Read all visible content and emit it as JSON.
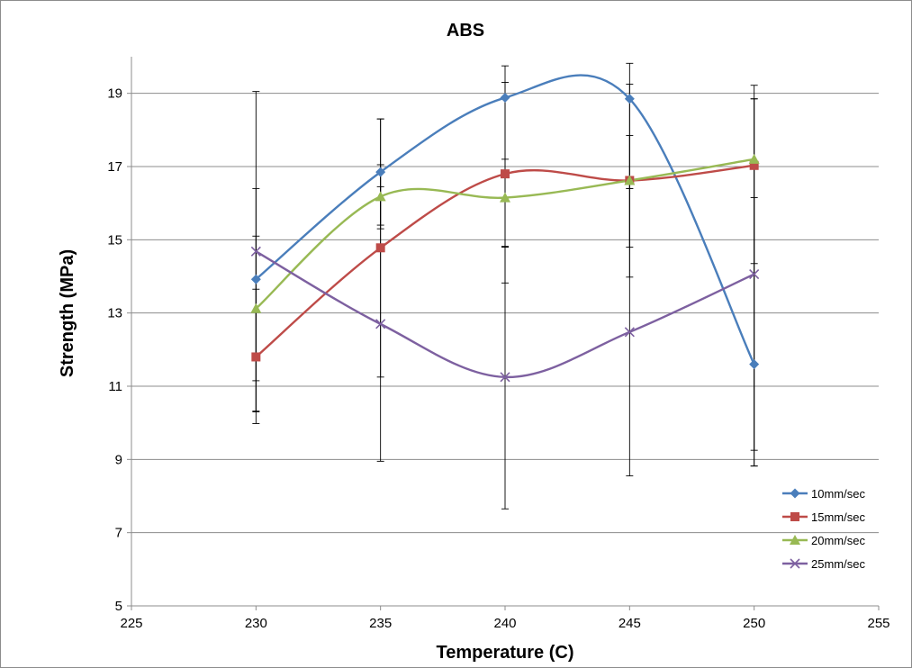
{
  "chart_data": {
    "type": "scatter",
    "title": "ABS",
    "xlabel": "Temperature (C)",
    "ylabel": "Strength (MPa)",
    "xlim": [
      225,
      255
    ],
    "ylim": [
      5,
      20
    ],
    "xticks": [
      225,
      230,
      235,
      240,
      245,
      250,
      255
    ],
    "yticks": [
      5,
      7,
      9,
      11,
      13,
      15,
      17,
      19
    ],
    "grid": "horizontal major gridlines",
    "line_style": "smoothed lines with markers and error bars",
    "legend_position": "bottom-right",
    "x": [
      230,
      235,
      240,
      245,
      250
    ],
    "series": [
      {
        "name": "10mm/sec",
        "color": "#4a7ebb",
        "marker": "diamond",
        "values": [
          13.92,
          16.85,
          18.88,
          18.85,
          11.6
        ],
        "err_low": [
          10.3,
          15.4,
          14.8,
          14.8,
          9.25
        ],
        "err_high": [
          16.4,
          18.3,
          19.75,
          19.82,
          18.85
        ]
      },
      {
        "name": "15mm/sec",
        "color": "#be4b48",
        "marker": "square",
        "values": [
          11.8,
          14.78,
          16.8,
          16.62,
          17.03
        ],
        "err_low": [
          9.98,
          11.25,
          13.82,
          13.98,
          8.82
        ],
        "err_high": [
          13.65,
          18.3,
          19.3,
          19.25,
          19.22
        ]
      },
      {
        "name": "20mm/sec",
        "color": "#98b954",
        "marker": "triangle",
        "values": [
          13.12,
          16.18,
          16.15,
          16.62,
          17.2
        ],
        "err_low": [
          11.15,
          15.3,
          14.8,
          16.4,
          14.35
        ],
        "err_high": [
          15.1,
          17.05,
          17.2,
          17.85,
          18.85
        ]
      },
      {
        "name": "25mm/sec",
        "color": "#7d60a0",
        "marker": "x",
        "values": [
          14.68,
          12.7,
          11.25,
          12.48,
          14.06
        ],
        "err_low": [
          10.32,
          8.95,
          7.65,
          8.55,
          8.82
        ],
        "err_high": [
          19.05,
          16.45,
          14.82,
          16.4,
          16.15
        ]
      }
    ]
  }
}
